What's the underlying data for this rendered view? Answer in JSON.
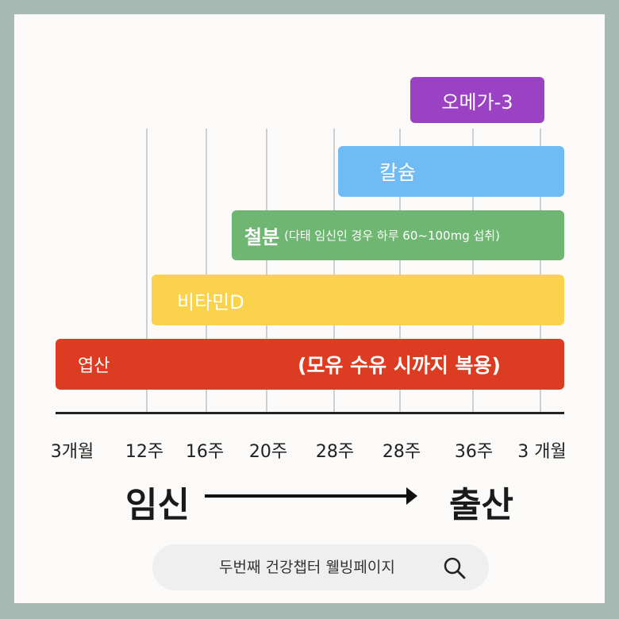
{
  "chart_data": {
    "type": "bar",
    "x_ticks": [
      "3개월",
      "12주",
      "16주",
      "20주",
      "28주",
      "28주",
      "36주",
      "3 개월"
    ],
    "series": [
      {
        "name": "오메가-3",
        "start_tick": "28주",
        "end_tick": "3 개월"
      },
      {
        "name": "칼슘",
        "start_tick": "28주",
        "end_tick": "3 개월"
      },
      {
        "name": "철분",
        "note": "(다태 임신인 경우 하루 60~100mg 섭취)",
        "start_tick": "20주",
        "end_tick": "3 개월"
      },
      {
        "name": "비타민D",
        "start_tick": "12주",
        "end_tick": "3 개월"
      },
      {
        "name": "엽산",
        "note": "(모유 수유 시까지 복용)",
        "start_tick": "3개월",
        "end_tick": "3 개월"
      }
    ],
    "colors": {
      "omega3": "#9b42c4",
      "calcium": "#6fbcf5",
      "iron": "#6fb672",
      "vitaminD": "#fbd24c",
      "folic": "#dc3c22"
    },
    "grid": true
  },
  "timeline": {
    "start_label": "임신",
    "end_label": "출산"
  },
  "search": {
    "text": "두번째 건강챕터 웰빙페이지",
    "icon": "search-icon"
  }
}
